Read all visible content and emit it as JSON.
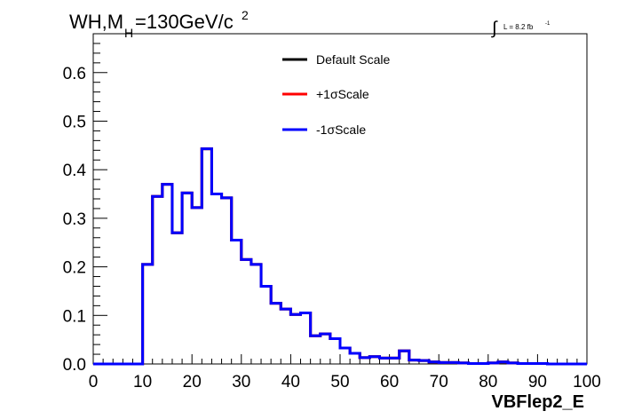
{
  "chart_data": {
    "type": "line",
    "title_main": "WH,M",
    "title_sub": "H",
    "title_value": "=130GeV/c",
    "title_sup": "2",
    "lumi_text": "L = 8.2 fb",
    "lumi_sup": "-1",
    "xlabel": "VBFlep2_E",
    "ylabel": "",
    "xlim": [
      0,
      100
    ],
    "ylim": [
      0,
      0.68
    ],
    "x_ticks": [
      0,
      10,
      20,
      30,
      40,
      50,
      60,
      70,
      80,
      90,
      100
    ],
    "y_ticks": [
      0.0,
      0.1,
      0.2,
      0.3,
      0.4,
      0.5,
      0.6
    ],
    "x_tick_labels": [
      "0",
      "10",
      "20",
      "30",
      "40",
      "50",
      "60",
      "70",
      "80",
      "90",
      "100"
    ],
    "y_tick_labels": [
      "0.0",
      "0.1",
      "0.2",
      "0.3",
      "0.4",
      "0.5",
      "0.6"
    ],
    "bin_edges": [
      0,
      2,
      4,
      6,
      8,
      10,
      12,
      14,
      16,
      18,
      20,
      22,
      24,
      26,
      28,
      30,
      32,
      34,
      36,
      38,
      40,
      42,
      44,
      46,
      48,
      50,
      52,
      54,
      56,
      58,
      60,
      62,
      64,
      66,
      68,
      70,
      72,
      74,
      76,
      78,
      80,
      82,
      84,
      86,
      88,
      90,
      92,
      94,
      96,
      98,
      100
    ],
    "grid": false,
    "legend_position": "top-center",
    "series": [
      {
        "name": "Default Scale",
        "color": "#000000",
        "values": [
          0,
          0,
          0,
          0,
          0,
          0.205,
          0.345,
          0.37,
          0.27,
          0.352,
          0.322,
          0.443,
          0.35,
          0.342,
          0.255,
          0.215,
          0.205,
          0.16,
          0.125,
          0.113,
          0.102,
          0.105,
          0.058,
          0.062,
          0.052,
          0.033,
          0.022,
          0.013,
          0.015,
          0.012,
          0.012,
          0.027,
          0.008,
          0.007,
          0.004,
          0.003,
          0.003,
          0.002,
          0.001,
          0.001,
          0.002,
          0.004,
          0.002,
          0.001,
          0.001,
          0.001,
          0.0,
          0.0,
          0.0,
          0.0
        ]
      },
      {
        "name": "+1σScale",
        "color": "#ff0000",
        "values": [
          0,
          0,
          0,
          0,
          0,
          0.205,
          0.345,
          0.37,
          0.27,
          0.352,
          0.322,
          0.443,
          0.35,
          0.342,
          0.255,
          0.215,
          0.205,
          0.16,
          0.125,
          0.113,
          0.102,
          0.105,
          0.058,
          0.062,
          0.052,
          0.033,
          0.022,
          0.013,
          0.015,
          0.012,
          0.012,
          0.027,
          0.008,
          0.007,
          0.004,
          0.003,
          0.003,
          0.002,
          0.001,
          0.001,
          0.002,
          0.004,
          0.002,
          0.001,
          0.001,
          0.001,
          0.0,
          0.0,
          0.0,
          0.0
        ]
      },
      {
        "name": "-1σScale",
        "color": "#0000ff",
        "values": [
          0,
          0,
          0,
          0,
          0,
          0.205,
          0.345,
          0.37,
          0.27,
          0.352,
          0.322,
          0.443,
          0.35,
          0.342,
          0.255,
          0.215,
          0.205,
          0.16,
          0.125,
          0.113,
          0.102,
          0.105,
          0.058,
          0.062,
          0.052,
          0.033,
          0.022,
          0.013,
          0.015,
          0.012,
          0.012,
          0.027,
          0.008,
          0.007,
          0.004,
          0.003,
          0.003,
          0.002,
          0.001,
          0.001,
          0.002,
          0.004,
          0.002,
          0.001,
          0.001,
          0.001,
          0.0,
          0.0,
          0.0,
          0.0
        ]
      }
    ]
  }
}
